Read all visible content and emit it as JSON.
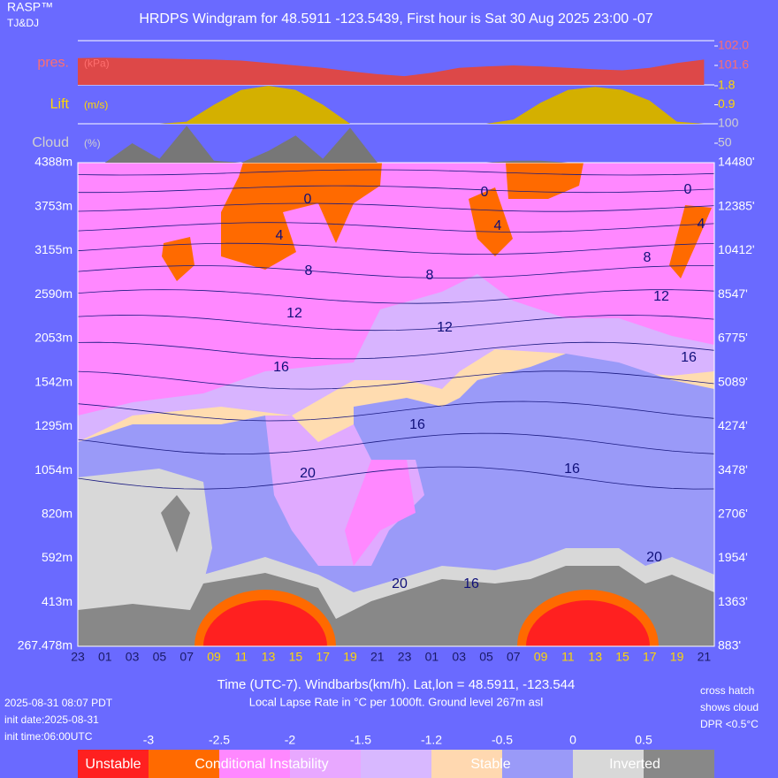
{
  "header": {
    "app": "RASP™",
    "authors": "TJ&DJ",
    "title": "HRDPS Windgram for 48.5911 -123.5439, First hour is Sat 30 Aug 2025 23:00 -07"
  },
  "chart_data": [
    {
      "type": "area",
      "label": "pres.",
      "unit": "(kPa)",
      "color": "#dd4848",
      "label_color": "#ff6e6e",
      "values": [
        101.75,
        101.76,
        101.75,
        101.74,
        101.73,
        101.72,
        101.7,
        101.65,
        101.6,
        101.55,
        101.48,
        101.42,
        101.38,
        101.45,
        101.55,
        101.58,
        101.6,
        101.58,
        101.55,
        101.52,
        101.5,
        101.55,
        101.65,
        101.72
      ],
      "ylim": [
        101.2,
        102.1
      ],
      "yticks": [
        {
          "value": 102,
          "label": "102.0"
        },
        101.6
      ]
    },
    {
      "type": "area",
      "label": "Lift",
      "unit": "(m/s)",
      "color": "#d4b000",
      "label_color": "#ffd800",
      "values": [
        0,
        0,
        0,
        0,
        0.1,
        0.9,
        1.6,
        1.8,
        1.6,
        0.9,
        0,
        0,
        0,
        0,
        0,
        0,
        0.2,
        1.0,
        1.6,
        1.75,
        1.6,
        1.1,
        0.1,
        0
      ],
      "ylim": [
        0,
        1.8
      ],
      "yticks": [
        0.9,
        1.8
      ]
    },
    {
      "type": "area",
      "label": "Cloud",
      "unit": "(%)",
      "color": "#777777",
      "label_color": "#d0d0d0",
      "values": [
        0,
        0,
        50,
        10,
        95,
        5,
        0,
        30,
        70,
        10,
        90,
        0,
        0,
        0,
        0,
        0,
        5,
        5,
        0,
        0,
        0,
        0,
        0,
        0
      ],
      "ylim": [
        0,
        100
      ],
      "yticks": [
        50,
        100
      ]
    },
    {
      "type": "windgram",
      "categories": [
        "23",
        "01",
        "03",
        "05",
        "07",
        "09",
        "11",
        "13",
        "15",
        "17",
        "19",
        "21",
        "23",
        "01",
        "03",
        "05",
        "07",
        "09",
        "11",
        "13",
        "15",
        "17",
        "19",
        "21"
      ],
      "x_label_colors": [
        "#1a1a66",
        "#1a1a66",
        "#1a1a66",
        "#1a1a66",
        "#1a1a66",
        "#ffd800",
        "#ffd800",
        "#ffd800",
        "#ffd800",
        "#ffd800",
        "#ffd800",
        "#1a1a66",
        "#1a1a66",
        "#1a1a66",
        "#1a1a66",
        "#1a1a66",
        "#1a1a66",
        "#ffd800",
        "#ffd800",
        "#ffd800",
        "#ffd800",
        "#ffd800",
        "#ffd800",
        "#1a1a66"
      ],
      "height_labels_m": [
        "4388m",
        "3753m",
        "3155m",
        "2590m",
        "2053m",
        "1542m",
        "1295m",
        "1054m",
        "820m",
        "592m",
        "413m",
        "267.478m"
      ],
      "height_labels_ft": [
        "14480'",
        "12385'",
        "10412'",
        "8547'",
        "6775'",
        "5089'",
        "4274'",
        "3478'",
        "2706'",
        "1954'",
        "1363'",
        "883'"
      ],
      "contour_labels": [
        0,
        4,
        8,
        12,
        16,
        16,
        20,
        20,
        0,
        4,
        8,
        12,
        16,
        16,
        0,
        4,
        8,
        12,
        16,
        20
      ],
      "xlabel": "Time (UTC-7). Windbarbs(km/h). Lat,lon = 48.5911, -123.544",
      "subtitle": "Local Lapse Rate in °C per 1000ft.   Ground level 267m asl",
      "legend": {
        "ticks": [
          -3,
          -2.5,
          -2,
          -1.5,
          -1.2,
          -0.5,
          0,
          0.5
        ],
        "colors": [
          "#ff2020",
          "#ff6a00",
          "#ff88ff",
          "#e8a8ff",
          "#d8b8ff",
          "#ffd8b0",
          "#9a9af8",
          "#d8d8d8",
          "#888888"
        ],
        "labels": [
          "Unstable",
          "Conditional Instability",
          "Stable",
          "Inverted"
        ]
      }
    }
  ],
  "footer": {
    "left": [
      "2025-08-31 08:07 PDT",
      "init date:2025-08-31",
      "init time:06:00UTC"
    ],
    "right": [
      "cross hatch",
      "shows cloud",
      "DPR <0.5°C"
    ]
  }
}
